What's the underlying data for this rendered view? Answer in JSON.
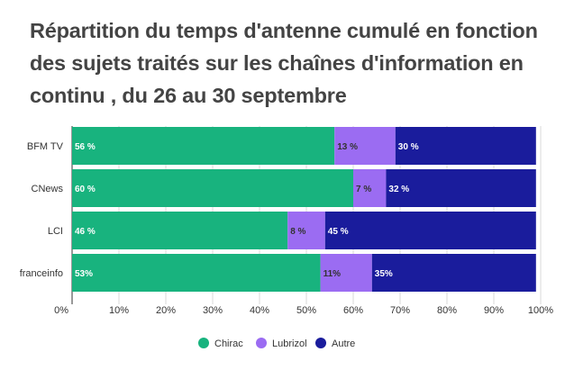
{
  "chart_data": {
    "type": "bar",
    "orientation": "horizontal",
    "stacked": true,
    "title": "Répartition du temps d'antenne cumulé en fonction des sujets traités sur les chaînes d'information en continu  , du 26 au 30 septembre",
    "categories": [
      "BFM TV",
      "CNews",
      "LCI",
      "franceinfo"
    ],
    "series": [
      {
        "name": "Chirac",
        "color": "#18b37e",
        "values": [
          56,
          60,
          46,
          53
        ],
        "labels": [
          "56 %",
          "60 %",
          "46 %",
          "53%"
        ],
        "label_color": "#ffffff"
      },
      {
        "name": "Lubrizol",
        "color": "#9b6cf2",
        "values": [
          13,
          7,
          8,
          11
        ],
        "labels": [
          "13 %",
          "7 %",
          "8 %",
          "11%"
        ],
        "label_color": "#333333"
      },
      {
        "name": "Autre",
        "color": "#1a1c9c",
        "values": [
          30,
          32,
          45,
          35
        ],
        "labels": [
          "30 %",
          "32 %",
          "45 %",
          "35%"
        ],
        "label_color": "#ffffff"
      }
    ],
    "xlim": [
      0,
      100
    ],
    "xticks": [
      "0%",
      "10%",
      "20%",
      "30%",
      "40%",
      "50%",
      "60%",
      "70%",
      "80%",
      "90%",
      "100%"
    ],
    "grid": true,
    "legend_position": "bottom"
  }
}
